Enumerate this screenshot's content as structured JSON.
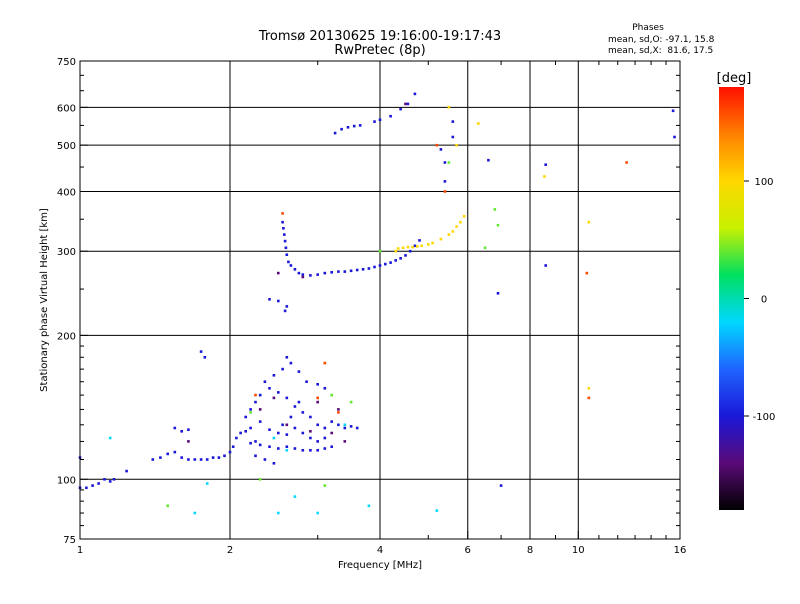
{
  "chart_data": {
    "type": "scatter",
    "title": "Tromsø 20130625 19:16:00-19:17:43",
    "subtitle": "RwPretec (8p)",
    "xlabel": "Frequency [MHz]",
    "ylabel": "Stationary phase Virtual Height [km]",
    "x_scale": "log",
    "y_scale": "log",
    "xlim": [
      1,
      16
    ],
    "ylim": [
      75,
      750
    ],
    "x_ticks": [
      1,
      2,
      4,
      6,
      8,
      10,
      16
    ],
    "x_tick_labels": [
      "1",
      "2",
      "4",
      "6",
      "8",
      "10",
      "16"
    ],
    "x_grid_lines": [
      1,
      2,
      4,
      6,
      8,
      10,
      16
    ],
    "x_minor_ticks": [
      3,
      5,
      7,
      9,
      11,
      12,
      13,
      14,
      15
    ],
    "y_ticks": [
      75,
      100,
      200,
      300,
      400,
      500,
      600,
      750
    ],
    "y_tick_labels": [
      "75",
      "100",
      "200",
      "300",
      "400",
      "500",
      "600",
      "750"
    ],
    "y_minor_ticks": [
      80,
      85,
      90,
      95,
      110,
      120,
      130,
      140,
      150,
      160,
      170,
      180,
      190,
      250,
      350,
      450,
      550,
      650,
      700
    ],
    "grid": true,
    "info": {
      "heading": "Phases",
      "line1": "mean, sd,O: -97.1, 15.8",
      "line2": "mean, sd,X:  81.6, 17.5"
    },
    "colorbar": {
      "label": "[deg]",
      "min": -180,
      "max": 180,
      "ticks": [
        100,
        0,
        -100
      ],
      "tick_labels": [
        "100",
        "0",
        "-100"
      ],
      "colormap": [
        "#000000",
        "#5a0a78",
        "#1a18d8",
        "#1f64ff",
        "#00d8ff",
        "#00e060",
        "#c8f000",
        "#ffd800",
        "#ff8000",
        "#ff1000"
      ]
    },
    "series": [
      {
        "phase_deg": -100,
        "points": [
          [
            1.0,
            96
          ],
          [
            1.03,
            96
          ],
          [
            1.06,
            97
          ],
          [
            1.09,
            98
          ],
          [
            1.12,
            100
          ],
          [
            1.15,
            99
          ],
          [
            1.0,
            111
          ],
          [
            1.17,
            100
          ],
          [
            1.24,
            104
          ],
          [
            1.4,
            110
          ],
          [
            1.45,
            111
          ],
          [
            1.5,
            113
          ],
          [
            1.55,
            114
          ],
          [
            1.6,
            111
          ],
          [
            1.65,
            110
          ],
          [
            1.7,
            110
          ],
          [
            1.75,
            110
          ],
          [
            1.8,
            110
          ],
          [
            1.85,
            111
          ],
          [
            1.9,
            111
          ],
          [
            1.95,
            112
          ],
          [
            2.0,
            114
          ],
          [
            2.03,
            117
          ],
          [
            2.06,
            122
          ],
          [
            2.1,
            125
          ],
          [
            2.15,
            126
          ],
          [
            2.2,
            119
          ],
          [
            2.25,
            120
          ],
          [
            2.3,
            118
          ],
          [
            2.4,
            117
          ],
          [
            2.5,
            116
          ],
          [
            2.6,
            117
          ],
          [
            2.7,
            116
          ],
          [
            2.8,
            115
          ],
          [
            2.9,
            115
          ],
          [
            3.0,
            115
          ],
          [
            3.1,
            116
          ],
          [
            3.2,
            117
          ],
          [
            2.15,
            135
          ],
          [
            2.2,
            140
          ],
          [
            2.25,
            145
          ],
          [
            2.3,
            150
          ],
          [
            2.4,
            155
          ],
          [
            2.5,
            152
          ],
          [
            2.6,
            148
          ],
          [
            2.7,
            142
          ],
          [
            2.8,
            138
          ],
          [
            2.9,
            135
          ],
          [
            3.0,
            130
          ],
          [
            3.1,
            128
          ],
          [
            3.2,
            132
          ],
          [
            3.3,
            130
          ],
          [
            3.4,
            128
          ],
          [
            3.5,
            129
          ],
          [
            3.6,
            128
          ],
          [
            2.35,
            160
          ],
          [
            2.45,
            165
          ],
          [
            2.55,
            170
          ],
          [
            2.6,
            180
          ],
          [
            2.65,
            175
          ],
          [
            2.75,
            168
          ],
          [
            2.85,
            160
          ],
          [
            3.0,
            158
          ],
          [
            3.1,
            155
          ],
          [
            2.2,
            128
          ],
          [
            2.3,
            132
          ],
          [
            2.4,
            127
          ],
          [
            2.5,
            125
          ],
          [
            2.6,
            124
          ],
          [
            2.7,
            128
          ],
          [
            2.8,
            125
          ],
          [
            2.9,
            122
          ],
          [
            3.0,
            120
          ],
          [
            3.1,
            122
          ],
          [
            2.25,
            112
          ],
          [
            2.35,
            110
          ],
          [
            2.45,
            108
          ],
          [
            2.55,
            130
          ],
          [
            2.65,
            135
          ],
          [
            2.75,
            145
          ],
          [
            1.75,
            185
          ],
          [
            1.78,
            180
          ],
          [
            1.55,
            128
          ],
          [
            1.6,
            126
          ],
          [
            1.65,
            127
          ],
          [
            2.55,
            345
          ],
          [
            2.56,
            335
          ],
          [
            2.57,
            325
          ],
          [
            2.58,
            315
          ],
          [
            2.59,
            305
          ],
          [
            2.6,
            295
          ],
          [
            2.62,
            285
          ],
          [
            2.65,
            280
          ],
          [
            2.7,
            275
          ],
          [
            2.75,
            270
          ],
          [
            2.8,
            268
          ],
          [
            2.9,
            267
          ],
          [
            3.0,
            268
          ],
          [
            3.1,
            270
          ],
          [
            3.2,
            271
          ],
          [
            3.3,
            272
          ],
          [
            3.4,
            272
          ],
          [
            3.5,
            273
          ],
          [
            3.6,
            274
          ],
          [
            3.7,
            275
          ],
          [
            3.8,
            276
          ],
          [
            3.9,
            278
          ],
          [
            4.0,
            280
          ],
          [
            4.1,
            282
          ],
          [
            4.2,
            284
          ],
          [
            4.3,
            287
          ],
          [
            4.4,
            290
          ],
          [
            4.5,
            294
          ],
          [
            4.6,
            300
          ],
          [
            4.7,
            308
          ],
          [
            4.8,
            316
          ],
          [
            2.4,
            238
          ],
          [
            2.5,
            236
          ],
          [
            2.58,
            225
          ],
          [
            2.6,
            230
          ],
          [
            3.25,
            530
          ],
          [
            3.35,
            540
          ],
          [
            3.45,
            545
          ],
          [
            3.55,
            548
          ],
          [
            3.65,
            550
          ],
          [
            3.9,
            560
          ],
          [
            4.0,
            565
          ],
          [
            4.2,
            575
          ],
          [
            4.4,
            595
          ],
          [
            4.55,
            610
          ],
          [
            4.7,
            640
          ],
          [
            5.4,
            460
          ],
          [
            5.4,
            420
          ],
          [
            5.6,
            520
          ],
          [
            5.6,
            560
          ],
          [
            6.6,
            465
          ],
          [
            6.9,
            245
          ],
          [
            8.6,
            280
          ],
          [
            8.6,
            455
          ],
          [
            15.5,
            590
          ],
          [
            15.6,
            520
          ],
          [
            7.0,
            97
          ],
          [
            5.3,
            490
          ]
        ]
      },
      {
        "phase_deg": -140,
        "points": [
          [
            2.3,
            140
          ],
          [
            2.6,
            130
          ],
          [
            2.9,
            126
          ],
          [
            3.2,
            125
          ],
          [
            3.4,
            120
          ],
          [
            2.5,
            270
          ],
          [
            2.8,
            265
          ],
          [
            3.3,
            140
          ],
          [
            1.65,
            120
          ],
          [
            2.45,
            148
          ],
          [
            3.0,
            145
          ],
          [
            4.5,
            610
          ]
        ]
      },
      {
        "phase_deg": 100,
        "points": [
          [
            4.35,
            304
          ],
          [
            4.45,
            305
          ],
          [
            4.55,
            306
          ],
          [
            4.65,
            306
          ],
          [
            4.75,
            307
          ],
          [
            4.85,
            308
          ],
          [
            5.0,
            310
          ],
          [
            5.1,
            312
          ],
          [
            5.3,
            318
          ],
          [
            5.5,
            325
          ],
          [
            5.6,
            330
          ],
          [
            5.7,
            338
          ],
          [
            5.8,
            345
          ],
          [
            5.9,
            355
          ],
          [
            4.3,
            300
          ],
          [
            8.55,
            430
          ],
          [
            6.3,
            555
          ],
          [
            5.5,
            600
          ],
          [
            10.5,
            345
          ],
          [
            10.5,
            155
          ],
          [
            5.7,
            500
          ]
        ]
      },
      {
        "phase_deg": 160,
        "points": [
          [
            2.55,
            360
          ],
          [
            3.1,
            175
          ],
          [
            3.0,
            148
          ],
          [
            3.3,
            138
          ],
          [
            2.25,
            150
          ],
          [
            12.5,
            460
          ],
          [
            10.4,
            270
          ],
          [
            5.4,
            400
          ],
          [
            5.2,
            500
          ],
          [
            10.5,
            148
          ]
        ]
      },
      {
        "phase_deg": 40,
        "points": [
          [
            3.2,
            150
          ],
          [
            2.2,
            138
          ],
          [
            3.5,
            145
          ],
          [
            4.0,
            300
          ],
          [
            5.5,
            460
          ],
          [
            6.8,
            367
          ],
          [
            6.5,
            305
          ],
          [
            1.5,
            88
          ],
          [
            2.3,
            100
          ],
          [
            3.1,
            97
          ],
          [
            6.9,
            340
          ]
        ]
      },
      {
        "phase_deg": -20,
        "points": [
          [
            3.4,
            130
          ],
          [
            2.45,
            122
          ],
          [
            2.6,
            115
          ],
          [
            1.15,
            122
          ],
          [
            1.7,
            85
          ],
          [
            2.5,
            85
          ],
          [
            3.0,
            85
          ],
          [
            3.8,
            88
          ],
          [
            5.2,
            86
          ],
          [
            1.8,
            98
          ],
          [
            2.7,
            92
          ]
        ]
      }
    ]
  }
}
